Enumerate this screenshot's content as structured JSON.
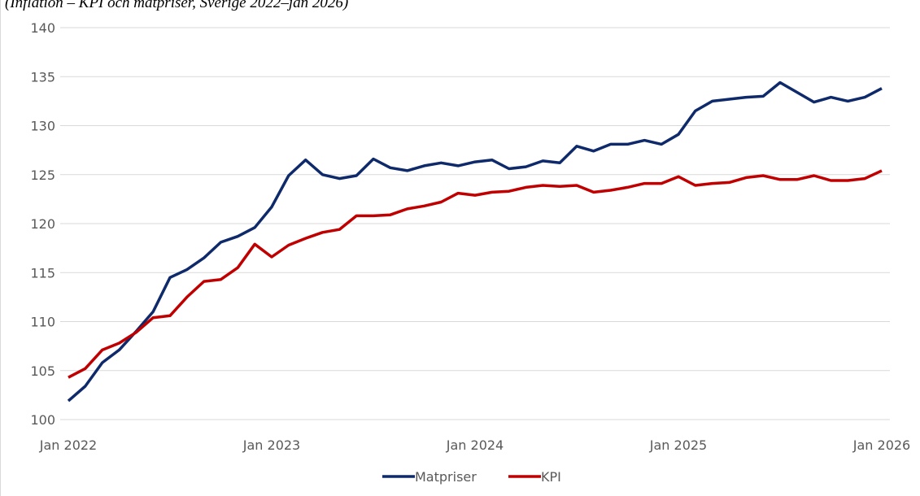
{
  "chart_data": {
    "type": "line",
    "title": "(Inflation – KPI och matpriser, Sverige 2022–jan 2026)",
    "categories": [
      "Jan 2022",
      null,
      null,
      null,
      null,
      null,
      null,
      null,
      null,
      null,
      null,
      null,
      "Jan 2023",
      null,
      null,
      null,
      null,
      null,
      null,
      null,
      null,
      null,
      null,
      null,
      "Jan 2024",
      null,
      null,
      null,
      null,
      null,
      null,
      null,
      null,
      null,
      null,
      null,
      "Jan 2025",
      null,
      null,
      null,
      null,
      null,
      null,
      null,
      null,
      null,
      null,
      null,
      "Jan 2026"
    ],
    "series": [
      {
        "name": "Matpriser",
        "color": "#0e2a6b",
        "values": [
          101.9,
          103.4,
          105.8,
          107.1,
          109.0,
          111.0,
          114.5,
          115.3,
          116.5,
          118.1,
          118.7,
          119.6,
          121.7,
          124.9,
          126.5,
          125.0,
          124.6,
          124.9,
          126.6,
          125.7,
          125.4,
          125.9,
          126.2,
          125.9,
          126.3,
          126.5,
          125.6,
          125.8,
          126.4,
          126.2,
          127.9,
          127.4,
          128.1,
          128.1,
          128.5,
          128.1,
          129.1,
          131.5,
          132.5,
          132.7,
          132.9,
          133.0,
          134.4,
          133.4,
          132.4,
          132.9,
          132.5,
          132.9,
          133.8
        ]
      },
      {
        "name": "KPI",
        "color": "#c00000",
        "values": [
          104.3,
          105.2,
          107.1,
          107.8,
          108.9,
          110.4,
          110.6,
          112.5,
          114.1,
          114.3,
          115.5,
          117.9,
          116.6,
          117.8,
          118.5,
          119.1,
          119.4,
          120.8,
          120.8,
          120.9,
          121.5,
          121.8,
          122.2,
          123.1,
          122.9,
          123.2,
          123.3,
          123.7,
          123.9,
          123.8,
          123.9,
          123.2,
          123.4,
          123.7,
          124.1,
          124.1,
          124.8,
          123.9,
          124.1,
          124.2,
          124.7,
          124.9,
          124.5,
          124.5,
          124.9,
          124.4,
          124.4,
          124.6,
          125.4
        ]
      }
    ],
    "ylim": [
      100,
      140
    ],
    "yticks": [
      100,
      105,
      110,
      115,
      120,
      125,
      130,
      135,
      140
    ],
    "grid": true,
    "legend": "bottom"
  }
}
